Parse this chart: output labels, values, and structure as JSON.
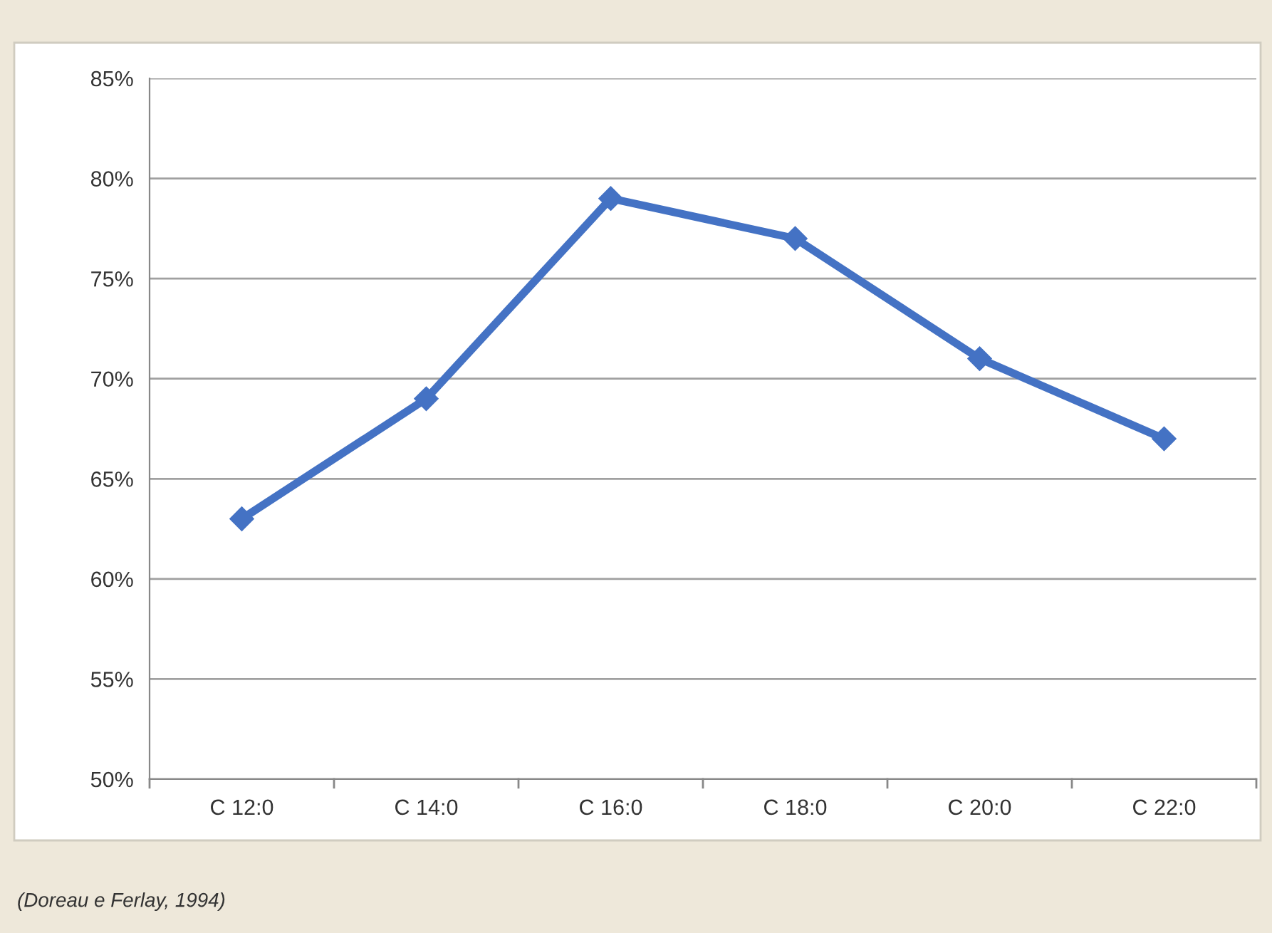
{
  "chart_data": {
    "type": "line",
    "categories": [
      "C 12:0",
      "C 14:0",
      "C 16:0",
      "C 18:0",
      "C 20:0",
      "C 22:0"
    ],
    "series": [
      {
        "color": "#4472c4",
        "values": [
          63,
          69,
          79,
          77,
          71,
          67
        ]
      }
    ],
    "ylim": [
      50,
      85
    ],
    "yticks": [
      {
        "value": 50,
        "label": "50%"
      },
      {
        "value": 55,
        "label": "55%"
      },
      {
        "value": 60,
        "label": "60%"
      },
      {
        "value": 65,
        "label": "65%"
      },
      {
        "value": 70,
        "label": "70%"
      },
      {
        "value": 75,
        "label": "75%"
      },
      {
        "value": 80,
        "label": "80%"
      },
      {
        "value": 85,
        "label": "85%"
      }
    ],
    "grid": "y",
    "marker": "diamond",
    "line_style": "solid",
    "annotations": [
      "(Doreau e Ferlay, 1994)"
    ]
  }
}
